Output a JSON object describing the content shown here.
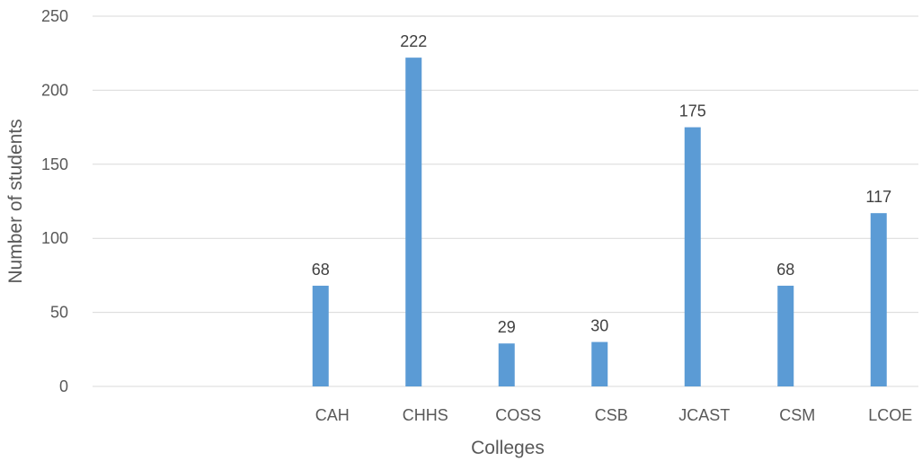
{
  "chart_data": {
    "type": "bar",
    "title": "",
    "xlabel": "Colleges",
    "ylabel": "Number of students",
    "categories": [
      "",
      "",
      "CAH",
      "CHHS",
      "COSS",
      "CSB",
      "JCAST",
      "CSM",
      "LCOE"
    ],
    "values": [
      null,
      null,
      68,
      222,
      29,
      30,
      175,
      68,
      117
    ],
    "data_labels": [
      "",
      "",
      "68",
      "222",
      "29",
      "30",
      "175",
      "68",
      "117"
    ],
    "ylim": [
      0,
      250
    ],
    "yticks": [
      "0",
      "50",
      "100",
      "150",
      "200",
      "250"
    ],
    "grid": true,
    "legend": "none",
    "bar_color": "#5b9bd5"
  }
}
